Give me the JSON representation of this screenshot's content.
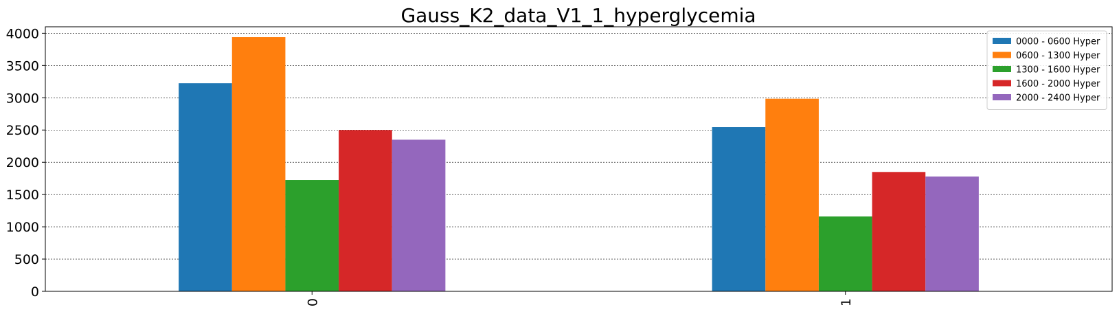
{
  "chart_data": {
    "type": "bar",
    "title": "Gauss_K2_data_V1_1_hyperglycemia",
    "xlabel": "",
    "ylabel": "",
    "categories": [
      "0",
      "1"
    ],
    "ylim": [
      0,
      4100
    ],
    "yticks": [
      0,
      500,
      1000,
      1500,
      2000,
      2500,
      3000,
      3500,
      4000
    ],
    "grid": true,
    "legend_position": "top-right",
    "series": [
      {
        "name": "0000 - 0600 Hyper",
        "color": "#1f77b4",
        "values": [
          3225,
          2545
        ]
      },
      {
        "name": "0600 - 1300 Hyper",
        "color": "#ff7f0e",
        "values": [
          3940,
          2985
        ]
      },
      {
        "name": "1300 - 1600 Hyper",
        "color": "#2ca02c",
        "values": [
          1725,
          1160
        ]
      },
      {
        "name": "1600 - 2000 Hyper",
        "color": "#d62728",
        "values": [
          2500,
          1850
        ]
      },
      {
        "name": "2000 - 2400 Hyper",
        "color": "#9467bd",
        "values": [
          2350,
          1780
        ]
      }
    ]
  }
}
